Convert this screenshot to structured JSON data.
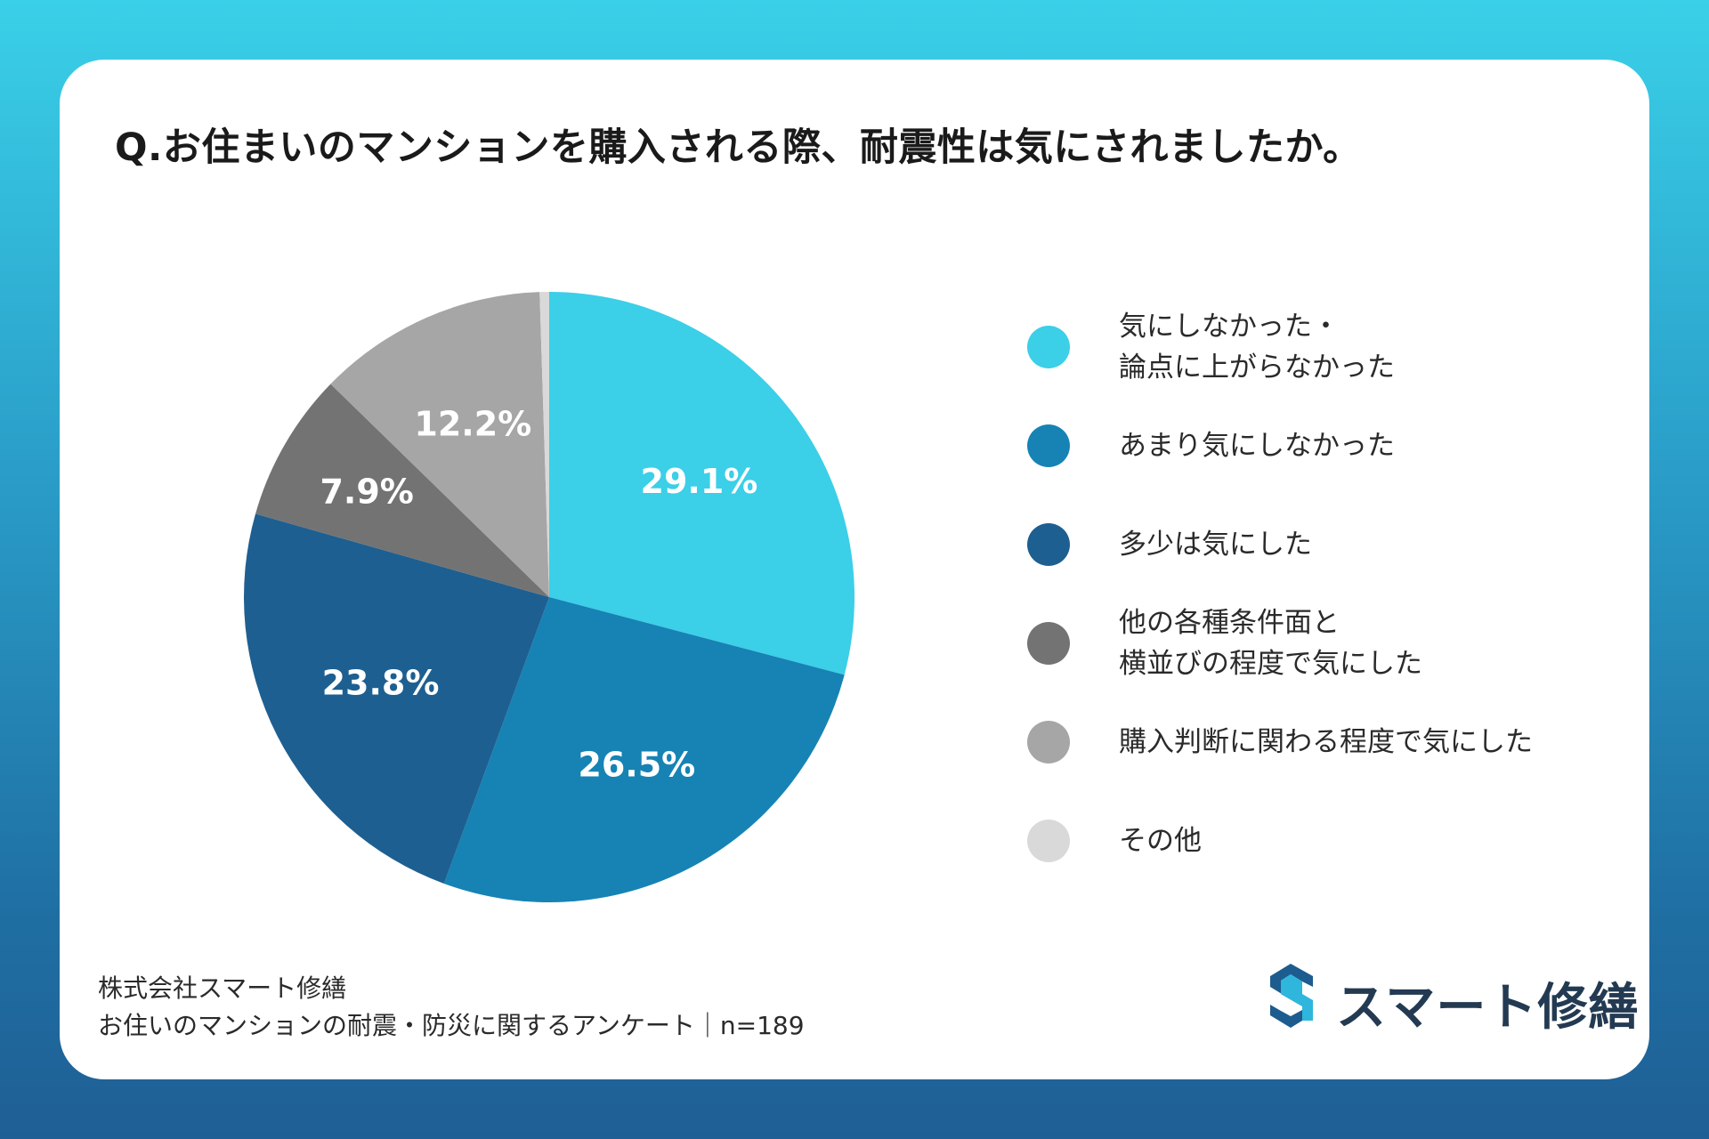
{
  "title": "Q.お住まいのマンションを購入される際、耐震性は気にされましたか。",
  "chart_data": {
    "type": "pie",
    "title": "Q.お住まいのマンションを購入される際、耐震性は気にされましたか。",
    "slices": [
      {
        "label": "気にしなかった・\n論点に上がらなかった",
        "value": 29.1,
        "display": "29.1%",
        "color": "#3bcfe8"
      },
      {
        "label": "あまり気にしなかった",
        "value": 26.5,
        "display": "26.5%",
        "color": "#1683b4"
      },
      {
        "label": "多少は気にした",
        "value": 23.8,
        "display": "23.8%",
        "color": "#1e5f91"
      },
      {
        "label": "他の各種条件面と\n横並びの程度で気にした",
        "value": 7.9,
        "display": "7.9%",
        "color": "#737373"
      },
      {
        "label": "購入判断に関わる程度で気にした",
        "value": 12.2,
        "display": "12.2%",
        "color": "#a6a6a6"
      },
      {
        "label": "その他",
        "value": 0.5,
        "display": "",
        "color": "#d9d9d9"
      }
    ],
    "legend_position": "right"
  },
  "source": {
    "company": "株式会社スマート修繕",
    "survey": "お住いのマンションの耐震・防災に関するアンケート｜n=189"
  },
  "logo": {
    "text": "スマート修繕",
    "icon": "s-logo-icon"
  }
}
